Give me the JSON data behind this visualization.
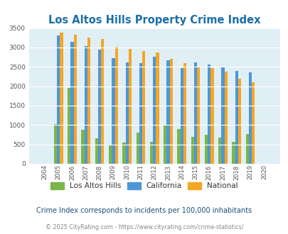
{
  "title": "Los Altos Hills Property Crime Index",
  "years": [
    2004,
    2005,
    2006,
    2007,
    2008,
    2009,
    2010,
    2011,
    2012,
    2013,
    2014,
    2015,
    2016,
    2017,
    2018,
    2019,
    2020
  ],
  "los_altos_hills": [
    0,
    1030,
    1960,
    870,
    650,
    470,
    540,
    800,
    570,
    1010,
    890,
    700,
    750,
    670,
    570,
    770,
    0
  ],
  "california": [
    0,
    3310,
    3150,
    3040,
    2950,
    2720,
    2620,
    2590,
    2760,
    2670,
    2470,
    2620,
    2560,
    2490,
    2400,
    2360,
    0
  ],
  "national": [
    0,
    3390,
    3330,
    3250,
    3210,
    3020,
    2960,
    2900,
    2870,
    2710,
    2590,
    2490,
    2460,
    2370,
    2200,
    2110,
    0
  ],
  "ylim": [
    0,
    3500
  ],
  "yticks": [
    0,
    500,
    1000,
    1500,
    2000,
    2500,
    3000,
    3500
  ],
  "color_lah": "#7ab648",
  "color_ca": "#4d96d9",
  "color_nat": "#f5a623",
  "bg_color": "#e0eff5",
  "grid_color": "#ffffff",
  "legend_labels": [
    "Los Altos Hills",
    "California",
    "National"
  ],
  "subtitle": "Crime Index corresponds to incidents per 100,000 inhabitants",
  "footer": "© 2025 CityRating.com - https://www.cityrating.com/crime-statistics/",
  "title_color": "#1a6fa8",
  "subtitle_color": "#1a4f78",
  "footer_color": "#888888",
  "url_color": "#4d96d9"
}
